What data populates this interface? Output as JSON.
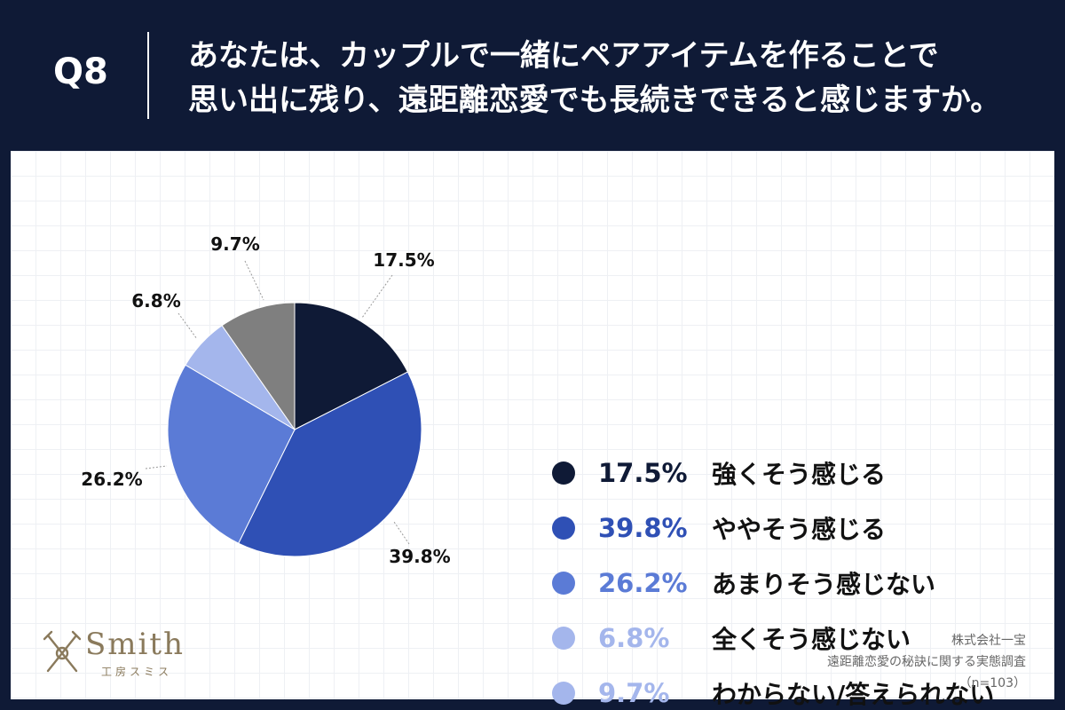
{
  "header": {
    "q_label": "Q8",
    "question_line1": "あなたは、カップルで一緒にペアアイテムを作ることで",
    "question_line2": "思い出に残り、遠距離恋愛でも長続きできると感じますか。"
  },
  "chart_data": {
    "type": "pie",
    "categories": [
      "強くそう感じる",
      "ややそう感じる",
      "あまりそう感じない",
      "全くそう感じない",
      "わからない/答えられない"
    ],
    "values": [
      17.5,
      39.8,
      26.2,
      6.8,
      9.7
    ],
    "value_labels": [
      "17.5%",
      "39.8%",
      "26.2%",
      "6.8%",
      "9.7%"
    ],
    "colors": [
      "#0f1a36",
      "#2f50b5",
      "#5b7bd6",
      "#a4b6ec",
      "#7f7f7f"
    ],
    "legend_dot_colors": [
      "#0f1a36",
      "#2f50b5",
      "#5b7bd6",
      "#a4b6ec",
      "#a4b6ec"
    ],
    "legend_text_colors": [
      "#0f1a36",
      "#2f50b5",
      "#5b7bd6",
      "#a4b6ec",
      "#a4b6ec"
    ],
    "start_angle": "12 o'clock",
    "direction": "clockwise",
    "legend_position": "right"
  },
  "legend": [
    {
      "pct": "17.5%",
      "label": "強くそう感じる"
    },
    {
      "pct": "39.8%",
      "label": "ややそう感じる"
    },
    {
      "pct": "26.2%",
      "label": "あまりそう感じない"
    },
    {
      "pct": "6.8%",
      "label": "全くそう感じない"
    },
    {
      "pct": "9.7%",
      "label": "わからない/答えられない"
    }
  ],
  "logo": {
    "name": "Smith",
    "sub": "工房スミス"
  },
  "source": {
    "line1": "株式会社一宝",
    "line2": "遠距離恋愛の秘訣に関する実態調査",
    "line3": "（n=103）"
  }
}
